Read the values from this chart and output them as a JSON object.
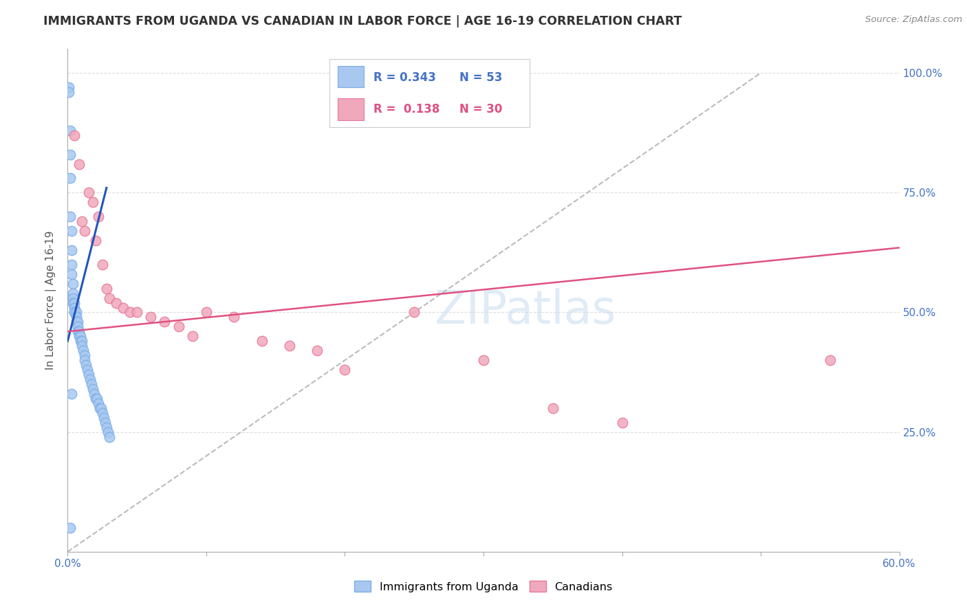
{
  "title": "IMMIGRANTS FROM UGANDA VS CANADIAN IN LABOR FORCE | AGE 16-19 CORRELATION CHART",
  "source": "Source: ZipAtlas.com",
  "ylabel": "In Labor Force | Age 16-19",
  "xlim": [
    0.0,
    0.6
  ],
  "ylim": [
    0.0,
    1.05
  ],
  "xticks": [
    0.0,
    0.1,
    0.2,
    0.3,
    0.4,
    0.5,
    0.6
  ],
  "xticklabels": [
    "0.0%",
    "",
    "",
    "",
    "",
    "",
    "60.0%"
  ],
  "yticks_left": [
    0.0,
    0.25,
    0.5,
    0.75,
    1.0
  ],
  "yticks_right_labels": [
    "25.0%",
    "50.0%",
    "75.0%",
    "100.0%"
  ],
  "yticks_right_vals": [
    0.25,
    0.5,
    0.75,
    1.0
  ],
  "blue_color": "#A8C8F0",
  "blue_edge_color": "#7AAEE8",
  "pink_color": "#F0A8BC",
  "pink_edge_color": "#E87898",
  "blue_line_color": "#2255BB",
  "pink_line_color": "#E05080",
  "diag_color": "#BBBBBB",
  "legend_blue_R": "0.343",
  "legend_blue_N": "53",
  "legend_pink_R": "0.138",
  "legend_pink_N": "30",
  "watermark_text": "ZIPatlas",
  "blue_scatter_x": [
    0.001,
    0.001,
    0.002,
    0.002,
    0.002,
    0.002,
    0.003,
    0.003,
    0.003,
    0.003,
    0.004,
    0.004,
    0.004,
    0.004,
    0.005,
    0.005,
    0.005,
    0.005,
    0.006,
    0.006,
    0.006,
    0.007,
    0.007,
    0.007,
    0.008,
    0.008,
    0.009,
    0.009,
    0.01,
    0.01,
    0.011,
    0.012,
    0.012,
    0.013,
    0.014,
    0.015,
    0.016,
    0.017,
    0.018,
    0.019,
    0.02,
    0.021,
    0.022,
    0.023,
    0.024,
    0.025,
    0.026,
    0.027,
    0.028,
    0.029,
    0.03,
    0.003,
    0.002
  ],
  "blue_scatter_y": [
    0.97,
    0.96,
    0.88,
    0.83,
    0.78,
    0.7,
    0.67,
    0.63,
    0.6,
    0.58,
    0.56,
    0.54,
    0.53,
    0.52,
    0.52,
    0.51,
    0.5,
    0.5,
    0.5,
    0.49,
    0.48,
    0.48,
    0.47,
    0.46,
    0.46,
    0.45,
    0.45,
    0.44,
    0.44,
    0.43,
    0.42,
    0.41,
    0.4,
    0.39,
    0.38,
    0.37,
    0.36,
    0.35,
    0.34,
    0.33,
    0.32,
    0.32,
    0.31,
    0.3,
    0.3,
    0.29,
    0.28,
    0.27,
    0.26,
    0.25,
    0.24,
    0.33,
    0.05
  ],
  "pink_scatter_x": [
    0.005,
    0.008,
    0.01,
    0.012,
    0.015,
    0.018,
    0.02,
    0.022,
    0.025,
    0.028,
    0.03,
    0.035,
    0.04,
    0.045,
    0.05,
    0.06,
    0.07,
    0.08,
    0.09,
    0.1,
    0.12,
    0.14,
    0.16,
    0.18,
    0.2,
    0.25,
    0.3,
    0.35,
    0.4,
    0.55
  ],
  "pink_scatter_y": [
    0.87,
    0.81,
    0.69,
    0.67,
    0.75,
    0.73,
    0.65,
    0.7,
    0.6,
    0.55,
    0.53,
    0.52,
    0.51,
    0.5,
    0.5,
    0.49,
    0.48,
    0.47,
    0.45,
    0.5,
    0.49,
    0.44,
    0.43,
    0.42,
    0.38,
    0.5,
    0.4,
    0.3,
    0.27,
    0.4
  ],
  "blue_trend_x": [
    0.0,
    0.028
  ],
  "blue_trend_y": [
    0.44,
    0.76
  ],
  "pink_trend_x": [
    0.0,
    0.6
  ],
  "pink_trend_y": [
    0.46,
    0.635
  ],
  "diag_trend_x": [
    0.0,
    0.5
  ],
  "diag_trend_y": [
    0.0,
    1.0
  ]
}
